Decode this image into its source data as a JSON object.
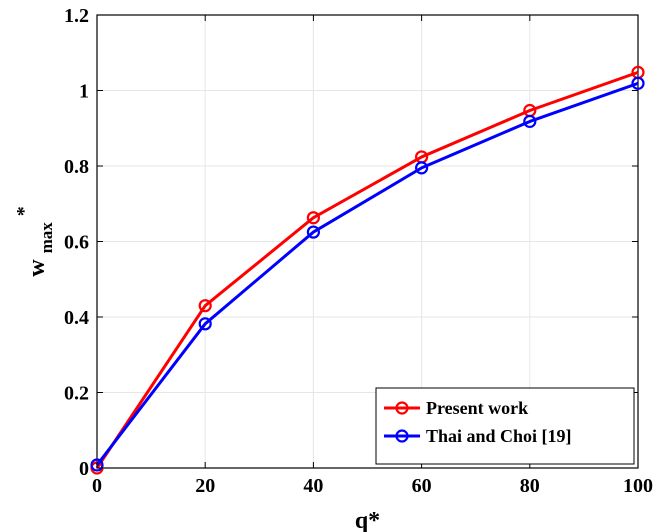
{
  "chart_data": {
    "type": "line",
    "x": [
      0,
      20,
      40,
      60,
      80,
      100
    ],
    "xlabel": "q*",
    "ylabel": {
      "main": "w",
      "sub": "max",
      "sup": "*"
    },
    "xlim": [
      0,
      100
    ],
    "ylim": [
      0,
      1.2
    ],
    "xticks": [
      0,
      20,
      40,
      60,
      80,
      100
    ],
    "xtick_labels": [
      "0",
      "20",
      "40",
      "60",
      "80",
      "100"
    ],
    "yticks": [
      0,
      0.2,
      0.4,
      0.6,
      0.8,
      1,
      1.2
    ],
    "ytick_labels": [
      "0",
      "0.2",
      "0.4",
      "0.6",
      "0.8",
      "1",
      "1.2"
    ],
    "grid": true,
    "legend_position": "bottom-right",
    "series": [
      {
        "name": "Present work",
        "color": "#ff0000",
        "marker": "circle",
        "values": [
          0,
          0.43,
          0.663,
          0.824,
          0.947,
          1.048
        ]
      },
      {
        "name": "Thai and Choi [19]",
        "color": "#0000ff",
        "marker": "circle",
        "values": [
          0.008,
          0.382,
          0.625,
          0.795,
          0.918,
          1.019
        ]
      }
    ]
  }
}
